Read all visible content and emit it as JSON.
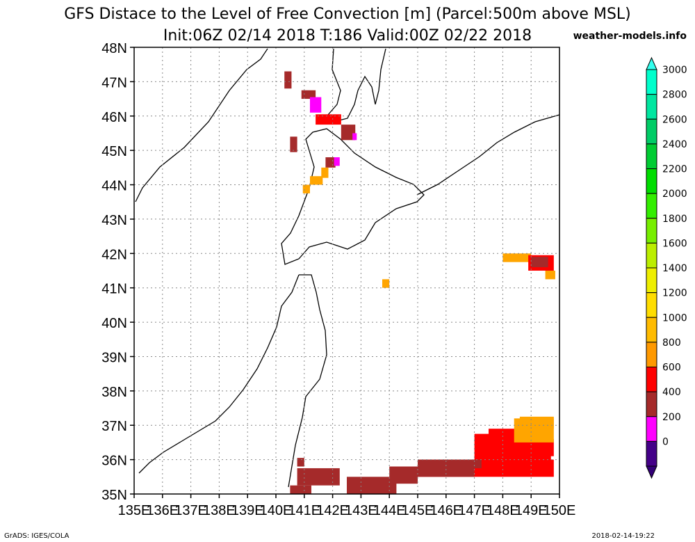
{
  "header": {
    "title_line1": "GFS Distace to the Level of Free Convection [m] (Parcel:500m above MSL)",
    "title_line2": "Init:06Z 02/14 2018 T:186 Valid:00Z 02/22 2018",
    "site": "weather-models.info"
  },
  "footer": {
    "left": "GrADS: IGES/COLA",
    "right": "2018-02-14-19:22"
  },
  "map": {
    "lat_labels": [
      "48N",
      "47N",
      "46N",
      "45N",
      "44N",
      "43N",
      "42N",
      "41N",
      "40N",
      "39N",
      "38N",
      "37N",
      "36N",
      "35N"
    ],
    "lon_labels": [
      "135E",
      "136E",
      "137E",
      "138E",
      "139E",
      "140E",
      "141E",
      "142E",
      "143E",
      "144E",
      "145E",
      "146E",
      "147E",
      "148E",
      "149E",
      "150E"
    ],
    "lat_range": [
      35,
      48
    ],
    "lon_range": [
      135,
      150
    ],
    "cells": [
      {
        "lon": 140.3,
        "lat": 46.8,
        "w": 0.25,
        "h": 0.5,
        "c": "#a52a2a"
      },
      {
        "lon": 140.9,
        "lat": 46.5,
        "w": 0.5,
        "h": 0.25,
        "c": "#a52a2a"
      },
      {
        "lon": 141.2,
        "lat": 46.1,
        "w": 0.4,
        "h": 0.45,
        "c": "#ff00ff"
      },
      {
        "lon": 141.4,
        "lat": 45.75,
        "w": 0.9,
        "h": 0.3,
        "c": "#ff0000"
      },
      {
        "lon": 142.3,
        "lat": 45.3,
        "w": 0.5,
        "h": 0.45,
        "c": "#a52a2a"
      },
      {
        "lon": 142.7,
        "lat": 45.3,
        "w": 0.15,
        "h": 0.2,
        "c": "#ff00ff"
      },
      {
        "lon": 140.5,
        "lat": 44.95,
        "w": 0.25,
        "h": 0.45,
        "c": "#a52a2a"
      },
      {
        "lon": 141.75,
        "lat": 44.5,
        "w": 0.35,
        "h": 0.3,
        "c": "#a52a2a"
      },
      {
        "lon": 142.05,
        "lat": 44.55,
        "w": 0.2,
        "h": 0.25,
        "c": "#ff00ff"
      },
      {
        "lon": 141.6,
        "lat": 44.2,
        "w": 0.25,
        "h": 0.3,
        "c": "#ffa500"
      },
      {
        "lon": 141.2,
        "lat": 44.0,
        "w": 0.45,
        "h": 0.25,
        "c": "#ffa500"
      },
      {
        "lon": 140.95,
        "lat": 43.75,
        "w": 0.25,
        "h": 0.25,
        "c": "#ffa500"
      },
      {
        "lon": 148.0,
        "lat": 41.75,
        "w": 1.0,
        "h": 0.25,
        "c": "#ffa500"
      },
      {
        "lon": 148.9,
        "lat": 41.5,
        "w": 0.9,
        "h": 0.45,
        "c": "#ff0000"
      },
      {
        "lon": 149.0,
        "lat": 41.6,
        "w": 0.6,
        "h": 0.3,
        "c": "#a52a2a"
      },
      {
        "lon": 149.5,
        "lat": 41.25,
        "w": 0.35,
        "h": 0.25,
        "c": "#ffa500"
      },
      {
        "lon": 143.75,
        "lat": 41.0,
        "w": 0.25,
        "h": 0.25,
        "c": "#ffa500"
      },
      {
        "lon": 145.0,
        "lat": 35.5,
        "w": 4.8,
        "h": 0.5,
        "c": "#ff0000"
      },
      {
        "lon": 147.0,
        "lat": 35.75,
        "w": 2.7,
        "h": 1.0,
        "c": "#ff0000"
      },
      {
        "lon": 147.5,
        "lat": 36.7,
        "w": 1.6,
        "h": 0.2,
        "c": "#ff0000"
      },
      {
        "lon": 148.0,
        "lat": 36.1,
        "w": 1.8,
        "h": 0.5,
        "c": "#ff0000"
      },
      {
        "lon": 148.4,
        "lat": 36.5,
        "w": 1.4,
        "h": 0.7,
        "c": "#ffa500"
      },
      {
        "lon": 148.6,
        "lat": 36.9,
        "w": 1.2,
        "h": 0.35,
        "c": "#ffa500"
      },
      {
        "lon": 140.75,
        "lat": 35.8,
        "w": 0.25,
        "h": 0.25,
        "c": "#a52a2a"
      },
      {
        "lon": 140.5,
        "lat": 35.0,
        "w": 0.75,
        "h": 0.25,
        "c": "#a52a2a"
      },
      {
        "lon": 140.75,
        "lat": 35.25,
        "w": 1.5,
        "h": 0.5,
        "c": "#a52a2a"
      },
      {
        "lon": 142.5,
        "lat": 35.0,
        "w": 1.75,
        "h": 0.5,
        "c": "#a52a2a"
      },
      {
        "lon": 144.0,
        "lat": 35.3,
        "w": 1.0,
        "h": 0.5,
        "c": "#a52a2a"
      },
      {
        "lon": 145.0,
        "lat": 35.5,
        "w": 2.0,
        "h": 0.5,
        "c": "#a52a2a"
      },
      {
        "lon": 146.75,
        "lat": 35.75,
        "w": 0.5,
        "h": 0.25,
        "c": "#a52a2a"
      }
    ]
  },
  "colorbar": {
    "labels": [
      "3000",
      "2800",
      "2600",
      "2400",
      "2200",
      "2000",
      "1800",
      "1600",
      "1400",
      "1200",
      "1000",
      "800",
      "600",
      "400",
      "200",
      "0"
    ],
    "colors_top_to_bottom": [
      "#00ffcc",
      "#00e6a0",
      "#00cc66",
      "#00cc33",
      "#00dd00",
      "#33ee00",
      "#77ee00",
      "#bbee00",
      "#eeee00",
      "#ffdd00",
      "#ffbb00",
      "#ff9900",
      "#ff0000",
      "#a52a2a",
      "#ff00ff",
      "#440088"
    ],
    "top_arrow_color": "#33ffee",
    "bottom_arrow_color": "#330077"
  }
}
